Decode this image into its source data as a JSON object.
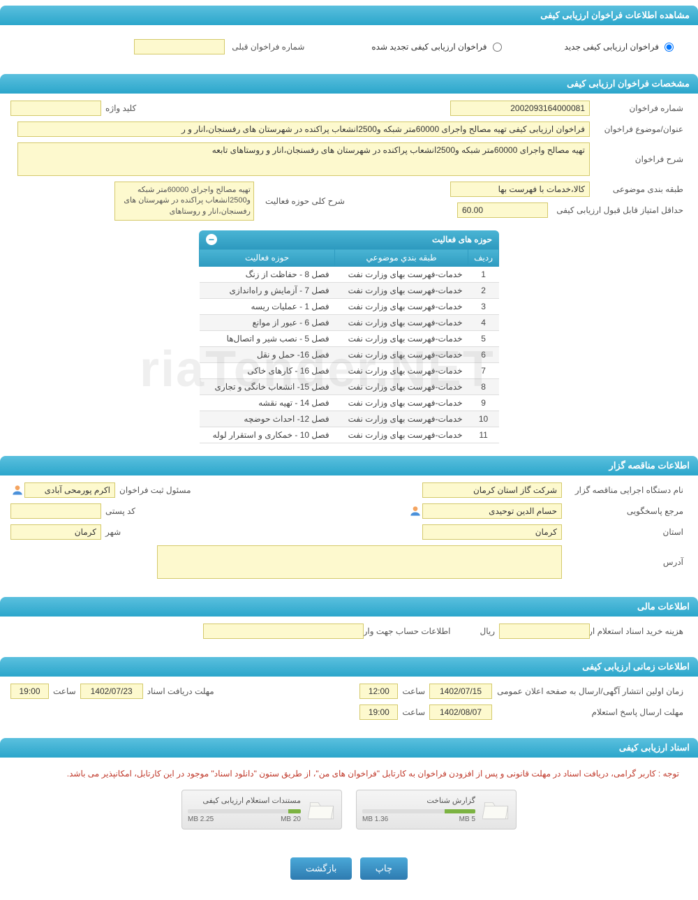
{
  "headers": {
    "main": "مشاهده اطلاعات فراخوان ارزیابی کیفی",
    "spec": "مشخصات فراخوان ارزیابی کیفی",
    "tender": "اطلاعات مناقصه گزار",
    "financial": "اطلاعات مالی",
    "timing": "اطلاعات زمانی ارزیابی کیفی",
    "docs": "اسناد ارزیابی کیفی"
  },
  "radios": {
    "new": "فراخوان ارزیابی کیفی جدید",
    "renewed": "فراخوان ارزیابی کیفی تجدید شده",
    "prev_label": "شماره فراخوان قبلی"
  },
  "spec": {
    "number_label": "شماره فراخوان",
    "number": "2002093164000081",
    "keyword_label": "کلید واژه",
    "keyword": "",
    "title_label": "عنوان/موضوع فراخوان",
    "title": "فراخوان ارزیابی کیفی تهیه مصالح واجرای 60000متر شبکه و2500انشعاب پراکنده در شهرستان های رفسنجان،انار و ر",
    "desc_label": "شرح فراخوان",
    "desc": "تهیه مصالح واجرای 60000متر شبکه و2500انشعاب پراکنده در شهرستان های رفسنجان،انار و روستاهای تابعه",
    "category_label": "طبقه بندی موضوعی",
    "category": "کالا،خدمات با فهرست بها",
    "min_score_label": "حداقل امتیاز قابل قبول ارزیابی کیفی",
    "min_score": "60.00",
    "activity_summary_label": "شرح کلی حوزه فعالیت",
    "activity_summary": "تهیه مصالح واجرای 60000متر شبکه و2500انشعاب پراکنده در شهرستان های رفسنجان،انار و روستاهای"
  },
  "activity_table": {
    "title": "حوزه های فعالیت",
    "cols": {
      "row": "ردیف",
      "cat": "طبقه بندي موضوعي",
      "area": "حوزه فعالیت"
    },
    "rows": [
      {
        "n": "1",
        "cat": "خدمات-فهرست بهای وزارت نفت",
        "area": "فصل 8 - حفاظت از زنگ"
      },
      {
        "n": "2",
        "cat": "خدمات-فهرست بهای وزارت نفت",
        "area": "فصل 7 - آزمایش و راه‌اندازی"
      },
      {
        "n": "3",
        "cat": "خدمات-فهرست بهای وزارت نفت",
        "area": "فصل 1 - عملیات ریسه"
      },
      {
        "n": "4",
        "cat": "خدمات-فهرست بهای وزارت نفت",
        "area": "فصل 6 - عبور از موانع"
      },
      {
        "n": "5",
        "cat": "خدمات-فهرست بهای وزارت نفت",
        "area": "فصل 5 - نصب شیر و اتصال‌ها"
      },
      {
        "n": "6",
        "cat": "خدمات-فهرست بهای وزارت نفت",
        "area": "فصل 16- حمل و نقل"
      },
      {
        "n": "7",
        "cat": "خدمات-فهرست بهای وزارت نفت",
        "area": "فصل 16 - کارهای خاکی"
      },
      {
        "n": "8",
        "cat": "خدمات-فهرست بهای وزارت نفت",
        "area": "فصل 15- انشعاب خانگی و تجاری"
      },
      {
        "n": "9",
        "cat": "خدمات-فهرست بهای وزارت نفت",
        "area": "فصل 14 - تهیه نقشه"
      },
      {
        "n": "10",
        "cat": "خدمات-فهرست بهای وزارت نفت",
        "area": "فصل 12- احداث حوضچه"
      },
      {
        "n": "11",
        "cat": "خدمات-فهرست بهای وزارت نفت",
        "area": "فصل 10 - خمکاری و استقرار لوله"
      }
    ]
  },
  "tender": {
    "org_label": "نام دستگاه اجرایی مناقصه گزار",
    "org": "شرکت گاز استان کرمان",
    "registrar_label": "مسئول ثبت فراخوان",
    "registrar": "اکرم پورمحی آبادی",
    "responder_label": "مرجع پاسخگویی",
    "responder": "حسام الدین توحیدی",
    "postal_label": "کد پستی",
    "postal": "",
    "province_label": "استان",
    "province": "کرمان",
    "city_label": "شهر",
    "city": "کرمان",
    "address_label": "آدرس",
    "address": ""
  },
  "financial": {
    "cost_label": "هزینه خرید اسناد استعلام ارزیابی کیفی",
    "cost": "",
    "currency": "ریال",
    "account_label": "اطلاعات حساب جهت واریز هزینه خرید اسناد",
    "account": ""
  },
  "timing": {
    "pub_label": "زمان اولین انتشار آگهی/ارسال به صفحه اعلان عمومی",
    "pub_date": "1402/07/15",
    "pub_time": "12:00",
    "receive_label": "مهلت دریافت اسناد",
    "receive_date": "1402/07/23",
    "receive_time": "19:00",
    "respond_label": "مهلت ارسال پاسخ استعلام",
    "respond_date": "1402/08/07",
    "respond_time": "19:00",
    "time_word": "ساعت"
  },
  "docs": {
    "note": "توجه : کاربر گرامی، دریافت اسناد در مهلت قانونی و پس از افزودن فراخوان به کارتابل \"فراخوان های من\"، از طریق ستون \"دانلود اسناد\" موجود در این کارتابل، امکانپذیر می باشد.",
    "files": [
      {
        "title": "گزارش شناخت",
        "used": "1.36 MB",
        "total": "5 MB",
        "pct": 27
      },
      {
        "title": "مستندات استعلام ارزیابی کیفی",
        "used": "2.25 MB",
        "total": "20 MB",
        "pct": 11
      }
    ]
  },
  "buttons": {
    "print": "چاپ",
    "back": "بازگشت"
  },
  "colors": {
    "header_grad_top": "#5bc0de",
    "header_grad_bot": "#2ba6cb",
    "field_bg": "#FDF9CE",
    "field_border": "#d4c96a",
    "btn_top": "#4aa8d8",
    "btn_bot": "#2e7bb0",
    "progress": "#7cb342",
    "note_color": "#c0392b"
  },
  "watermark": "riaTender.NET"
}
